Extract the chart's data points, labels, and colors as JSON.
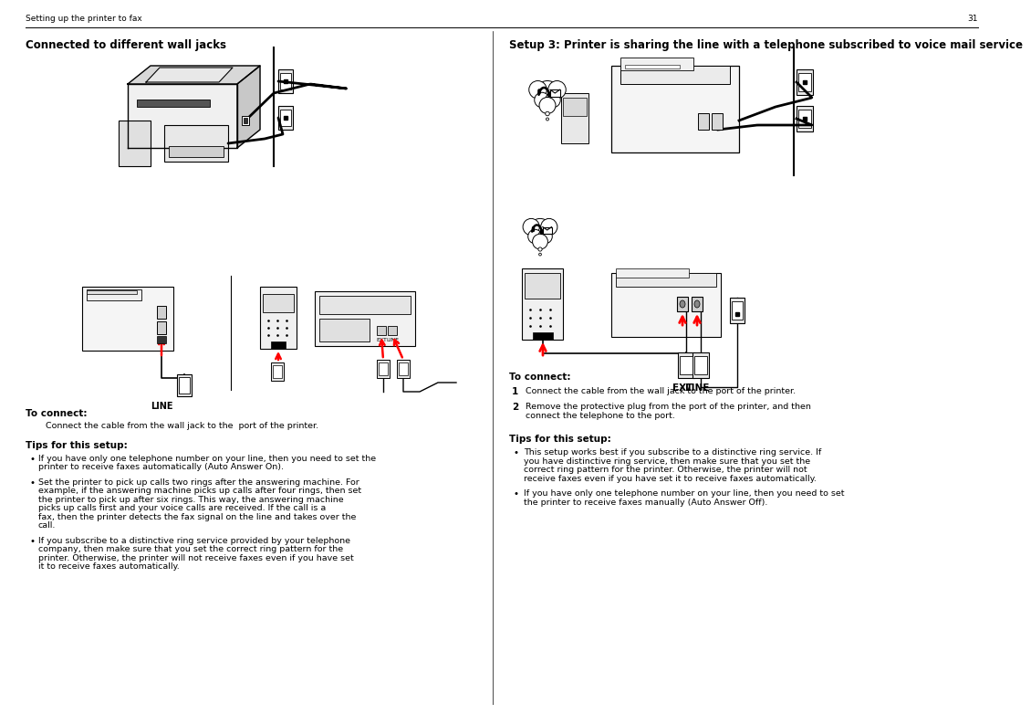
{
  "bg_color": "#ffffff",
  "header_left": "Setting up the printer to fax",
  "footer_note": "31",
  "left_title": "Connected to different wall jacks",
  "left_to_connect_label": "To connect:",
  "left_to_connect_text": "Connect the cable from the wall jack to the  port of the printer.",
  "left_tips_label": "Tips for this setup:",
  "left_tips": [
    "If you have only one telephone number on your line, then you need to set the printer to receive faxes automatically (Auto Answer On).",
    "Set the printer to pick up calls two rings after the answering machine. For example, if the answering machine picks up calls after four rings, then set the printer to pick up after six rings. This way, the answering machine picks up calls first and your voice calls are received. If the call is a fax, then the printer detects the fax signal on the line and takes over the call.",
    "If you subscribe to a distinctive ring service provided by your telephone company, then make sure that you set the correct ring pattern for the printer. Otherwise, the printer will not receive faxes even if you have set it to receive faxes automatically."
  ],
  "right_title": "Setup 3: Printer is sharing the line with a telephone subscribed to voice mail service",
  "right_to_connect_label": "To connect:",
  "right_steps": [
    "Connect the cable from the wall jack to the  port of the printer.",
    "Remove the protective plug from the  port of the printer, and then connect the telephone to the port."
  ],
  "right_tips_label": "Tips for this setup:",
  "right_tips": [
    "This setup works best if you subscribe to a distinctive ring service. If you have distinctive ring service, then make sure that you set the correct ring pattern for the printer. Otherwise, the printer will not receive faxes even if you have set it to receive faxes automatically.",
    "If you have only one telephone number on your line, then you need to set the printer to receive faxes manually (Auto Answer Off)."
  ],
  "font": "DejaVu Sans",
  "fs_header": 6.5,
  "fs_body": 7.5,
  "fs_small": 6.8,
  "fs_title": 8.5
}
